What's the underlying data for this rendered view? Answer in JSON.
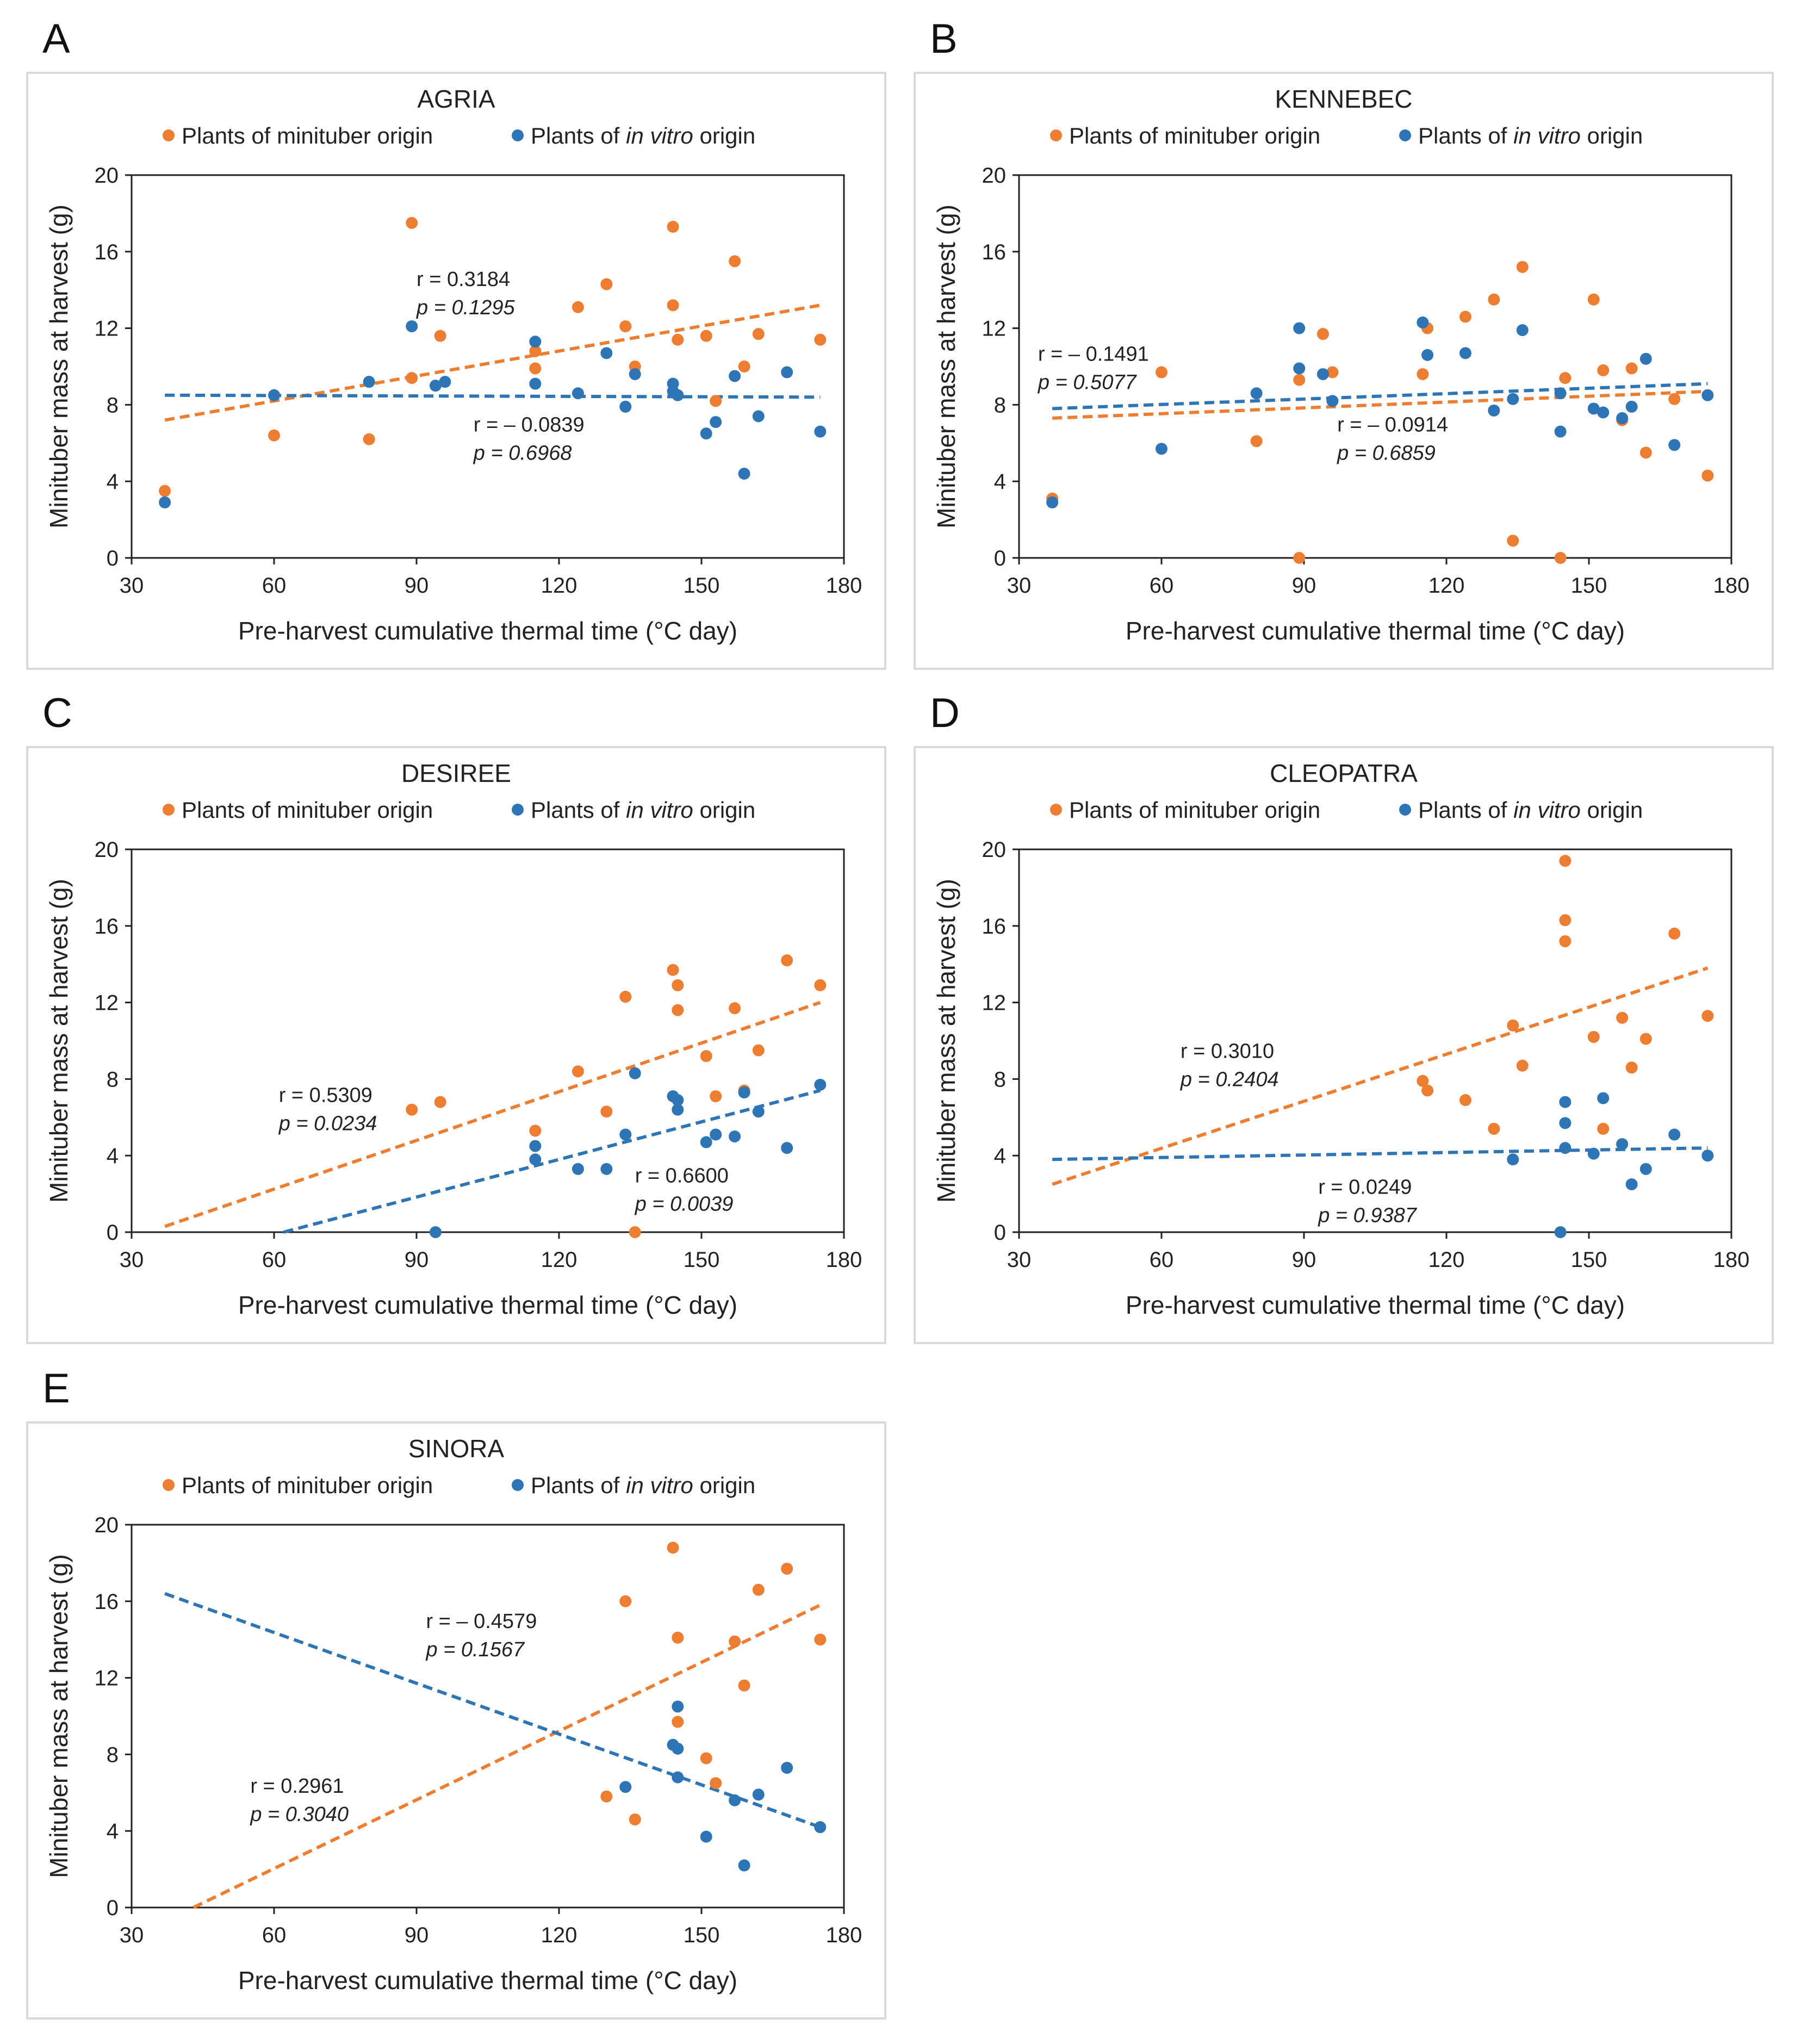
{
  "figure": {
    "legend_minituber": "Plants of minituber origin",
    "legend_invitro_prefix": "Plants of ",
    "legend_invitro_italic": "in vitro",
    "legend_invitro_suffix": " origin",
    "colors": {
      "minituber": "#ED7D31",
      "invitro": "#2E75B6"
    }
  },
  "chart_data": [
    {
      "panel": "A",
      "type": "scatter",
      "title": "AGRIA",
      "xlabel": "Pre-harvest cumulative thermal time (°C day)",
      "ylabel": "Minituber mass at harvest (g)",
      "xlim": [
        30,
        180
      ],
      "ylim": [
        0,
        20
      ],
      "xticks": [
        30,
        60,
        90,
        120,
        150,
        180
      ],
      "yticks": [
        0,
        4,
        8,
        12,
        16,
        20
      ],
      "series": [
        {
          "name": "Plants of minituber origin",
          "color": "#ED7D31",
          "x": [
            37,
            60,
            80,
            89,
            89,
            95,
            115,
            115,
            124,
            130,
            134,
            136,
            144,
            144,
            145,
            151,
            153,
            157,
            159,
            162,
            175
          ],
          "y": [
            3.5,
            6.4,
            6.2,
            17.5,
            9.4,
            11.6,
            9.9,
            10.8,
            13.1,
            14.3,
            12.1,
            10.0,
            17.3,
            13.2,
            11.4,
            11.6,
            8.2,
            15.5,
            10.0,
            11.7,
            11.4
          ],
          "trend": {
            "x": [
              37,
              175
            ],
            "y": [
              7.2,
              13.2
            ]
          },
          "r": "r = 0.3184",
          "p": "p = 0.1295",
          "label_pos": [
            90,
            14.2
          ]
        },
        {
          "name": "Plants of in vitro origin",
          "color": "#2E75B6",
          "x": [
            37,
            60,
            80,
            89,
            94,
            96,
            115,
            115,
            124,
            130,
            134,
            136,
            144,
            144,
            145,
            151,
            153,
            157,
            159,
            162,
            168,
            175
          ],
          "y": [
            2.9,
            8.5,
            9.2,
            12.1,
            9.0,
            9.2,
            9.1,
            11.3,
            8.6,
            10.7,
            7.9,
            9.6,
            9.1,
            8.7,
            8.5,
            6.5,
            7.1,
            9.5,
            4.4,
            7.4,
            9.7,
            6.6
          ],
          "trend": {
            "x": [
              37,
              175
            ],
            "y": [
              8.5,
              8.4
            ]
          },
          "r": "r = – 0.0839",
          "p": "p = 0.6968",
          "label_pos": [
            102,
            6.6
          ]
        }
      ]
    },
    {
      "panel": "B",
      "type": "scatter",
      "title": "KENNEBEC",
      "xlabel": "Pre-harvest cumulative thermal time (°C day)",
      "ylabel": "Minituber mass at harvest (g)",
      "xlim": [
        30,
        180
      ],
      "ylim": [
        0,
        20
      ],
      "xticks": [
        30,
        60,
        90,
        120,
        150,
        180
      ],
      "yticks": [
        0,
        4,
        8,
        12,
        16,
        20
      ],
      "series": [
        {
          "name": "Plants of minituber origin",
          "color": "#ED7D31",
          "x": [
            37,
            60,
            80,
            89,
            89,
            94,
            96,
            115,
            116,
            124,
            130,
            134,
            136,
            144,
            145,
            151,
            153,
            157,
            159,
            162,
            168,
            175
          ],
          "y": [
            3.1,
            9.7,
            6.1,
            9.3,
            0.0,
            11.7,
            9.7,
            9.6,
            12.0,
            12.6,
            13.5,
            0.9,
            15.2,
            0.0,
            9.4,
            13.5,
            9.8,
            7.2,
            9.9,
            5.5,
            8.3,
            4.3
          ],
          "trend": {
            "x": [
              37,
              175
            ],
            "y": [
              7.3,
              8.7
            ]
          },
          "r": "r = – 0.0914",
          "p": "p = 0.6859",
          "label_pos": [
            97,
            6.6
          ]
        },
        {
          "name": "Plants of in vitro origin",
          "color": "#2E75B6",
          "x": [
            37,
            60,
            80,
            89,
            89,
            94,
            96,
            115,
            116,
            124,
            130,
            134,
            136,
            144,
            144,
            151,
            153,
            157,
            159,
            162,
            168,
            175
          ],
          "y": [
            2.9,
            5.7,
            8.6,
            12.0,
            9.9,
            9.6,
            8.2,
            12.3,
            10.6,
            10.7,
            7.7,
            8.3,
            11.9,
            8.6,
            6.6,
            7.8,
            7.6,
            7.3,
            7.9,
            10.4,
            5.9,
            8.5
          ],
          "trend": {
            "x": [
              37,
              175
            ],
            "y": [
              7.8,
              9.1
            ]
          },
          "r": "r = – 0.1491",
          "p": "p = 0.5077",
          "label_pos": [
            34,
            10.3
          ]
        }
      ]
    },
    {
      "panel": "C",
      "type": "scatter",
      "title": "DESIREE",
      "xlabel": "Pre-harvest  cumulative thermal time (°C day)",
      "ylabel": "Minituber mass at harvest (g)",
      "xlim": [
        30,
        180
      ],
      "ylim": [
        0,
        20
      ],
      "xticks": [
        30,
        60,
        90,
        120,
        150,
        180
      ],
      "yticks": [
        0,
        4,
        8,
        12,
        16,
        20
      ],
      "series": [
        {
          "name": "Plants of minituber origin",
          "color": "#ED7D31",
          "x": [
            89,
            95,
            115,
            124,
            130,
            134,
            136,
            144,
            145,
            145,
            151,
            153,
            157,
            159,
            162,
            168,
            175
          ],
          "y": [
            6.4,
            6.8,
            5.3,
            8.4,
            6.3,
            12.3,
            0.0,
            13.7,
            12.9,
            11.6,
            9.2,
            7.1,
            11.7,
            7.4,
            9.5,
            14.2,
            12.9
          ],
          "trend": {
            "x": [
              37,
              175
            ],
            "y": [
              0.3,
              12.0
            ]
          },
          "r": "r = 0.5309",
          "p": "p = 0.0234",
          "label_pos": [
            61,
            6.8
          ]
        },
        {
          "name": "Plants of in vitro origin",
          "color": "#2E75B6",
          "x": [
            94,
            115,
            115,
            124,
            130,
            134,
            136,
            144,
            145,
            145,
            151,
            153,
            157,
            159,
            162,
            168,
            175
          ],
          "y": [
            0.0,
            3.8,
            4.5,
            3.3,
            3.3,
            5.1,
            8.3,
            7.1,
            6.9,
            6.4,
            4.7,
            5.1,
            5.0,
            7.3,
            6.3,
            4.4,
            7.7
          ],
          "trend": {
            "x": [
              62,
              175
            ],
            "y": [
              0.0,
              7.4
            ]
          },
          "r": "r = 0.6600",
          "p": "p = 0.0039",
          "label_pos": [
            136,
            2.6
          ]
        }
      ]
    },
    {
      "panel": "D",
      "type": "scatter",
      "title": "CLEOPATRA",
      "xlabel": "Pre-harvest  cumulative thermal time (°C day)",
      "ylabel": "Minituber mass at harvest (g)",
      "xlim": [
        30,
        180
      ],
      "ylim": [
        0,
        20
      ],
      "xticks": [
        30,
        60,
        90,
        120,
        150,
        180
      ],
      "yticks": [
        0,
        4,
        8,
        12,
        16,
        20
      ],
      "series": [
        {
          "name": "Plants of minituber origin",
          "color": "#ED7D31",
          "x": [
            115,
            116,
            124,
            130,
            134,
            136,
            145,
            145,
            145,
            151,
            153,
            157,
            159,
            162,
            168,
            175
          ],
          "y": [
            7.9,
            7.4,
            6.9,
            5.4,
            10.8,
            8.7,
            19.4,
            16.3,
            15.2,
            10.2,
            5.4,
            11.2,
            8.6,
            10.1,
            15.6,
            11.3
          ],
          "trend": {
            "x": [
              37,
              175
            ],
            "y": [
              2.5,
              13.8
            ]
          },
          "r": "r = 0.3010",
          "p": "p = 0.2404",
          "label_pos": [
            64,
            9.1
          ]
        },
        {
          "name": "Plants of in vitro origin",
          "color": "#2E75B6",
          "x": [
            134,
            144,
            145,
            145,
            145,
            151,
            153,
            157,
            159,
            162,
            168,
            175
          ],
          "y": [
            3.8,
            0.0,
            6.8,
            5.7,
            4.4,
            4.1,
            7.0,
            4.6,
            2.5,
            3.3,
            5.1,
            4.0
          ],
          "trend": {
            "x": [
              37,
              175
            ],
            "y": [
              3.8,
              4.4
            ]
          },
          "r": "r = 0.0249",
          "p": "p = 0.9387",
          "label_pos": [
            93,
            2.0
          ]
        }
      ]
    },
    {
      "panel": "E",
      "type": "scatter",
      "title": "SINORA",
      "xlabel": "Pre-harvest cumulative thermal time (°C day)",
      "ylabel": "Minituber mass at harvest (g)",
      "xlim": [
        30,
        180
      ],
      "ylim": [
        0,
        20
      ],
      "xticks": [
        30,
        60,
        90,
        120,
        150,
        180
      ],
      "yticks": [
        0,
        4,
        8,
        12,
        16,
        20
      ],
      "series": [
        {
          "name": "Plants of minituber origin",
          "color": "#ED7D31",
          "x": [
            130,
            134,
            136,
            144,
            145,
            145,
            151,
            153,
            157,
            159,
            162,
            168,
            175
          ],
          "y": [
            5.8,
            16.0,
            4.6,
            18.8,
            14.1,
            9.7,
            7.8,
            6.5,
            13.9,
            11.6,
            16.6,
            17.7,
            14.0
          ],
          "trend": {
            "x": [
              43,
              175
            ],
            "y": [
              0.0,
              15.8
            ]
          },
          "r": "r = 0.2961",
          "p": "p = 0.3040",
          "label_pos": [
            55,
            6.0
          ]
        },
        {
          "name": "Plants of in vitro origin",
          "color": "#2E75B6",
          "x": [
            134,
            144,
            145,
            145,
            145,
            151,
            157,
            159,
            162,
            168,
            175
          ],
          "y": [
            6.3,
            8.5,
            10.5,
            8.3,
            6.8,
            3.7,
            5.6,
            2.2,
            5.9,
            7.3,
            4.2
          ],
          "trend": {
            "x": [
              37,
              175
            ],
            "y": [
              16.4,
              4.2
            ]
          },
          "r": "r = – 0.4579",
          "p": "p = 0.1567",
          "label_pos": [
            92,
            14.6
          ]
        }
      ]
    }
  ]
}
